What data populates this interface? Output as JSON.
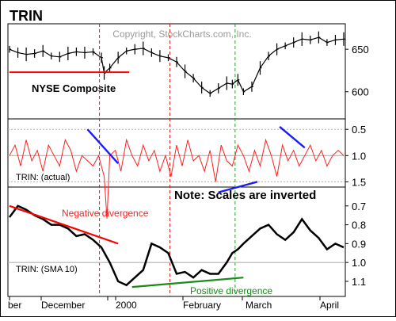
{
  "chart_data": {
    "type": "line",
    "title": "TRIN",
    "watermark": "Copyright, StockCharts.com, Inc.",
    "note": "Note: Scales are inverted",
    "x_tick_labels": [
      "ber",
      "December",
      "2000",
      "February",
      "March",
      "April"
    ],
    "panels": [
      {
        "name": "NYSE Composite",
        "series_color": "#000000",
        "y_scale": "linear",
        "y_ticks": [
          650,
          600
        ],
        "ylim": [
          568,
          680
        ],
        "x": [
          0,
          3,
          6,
          9,
          12,
          15,
          18,
          21,
          24,
          27,
          30,
          33,
          34,
          36,
          39,
          42,
          45,
          48,
          51,
          54,
          57,
          60,
          63,
          66,
          69,
          72,
          75,
          78,
          80,
          82,
          84,
          87,
          90,
          93,
          96,
          99,
          102,
          105,
          108,
          111,
          114,
          117,
          120
        ],
        "close": [
          650,
          646,
          644,
          645,
          648,
          642,
          641,
          645,
          647,
          646,
          647,
          640,
          622,
          628,
          640,
          648,
          650,
          651,
          646,
          642,
          640,
          635,
          624,
          616,
          605,
          598,
          604,
          610,
          609,
          614,
          600,
          606,
          628,
          642,
          650,
          654,
          658,
          662,
          661,
          664,
          658,
          661,
          662
        ]
      },
      {
        "name": "TRIN: (actual)",
        "series_color": "#ff2020",
        "y_scale": "inverted",
        "y_ticks": [
          0.5,
          1.0,
          1.5
        ],
        "ylim": [
          0.3,
          1.6
        ],
        "x": [
          0,
          2,
          4,
          6,
          8,
          10,
          12,
          14,
          16,
          18,
          20,
          22,
          24,
          26,
          28,
          30,
          32,
          34,
          35,
          36,
          38,
          40,
          42,
          44,
          46,
          48,
          50,
          52,
          54,
          56,
          58,
          60,
          62,
          64,
          66,
          68,
          70,
          72,
          74,
          76,
          78,
          80,
          82,
          84,
          86,
          88,
          90,
          92,
          94,
          96,
          98,
          100,
          102,
          104,
          106,
          108,
          110,
          112,
          114,
          116,
          118,
          120
        ],
        "values": [
          1.0,
          0.8,
          1.2,
          0.7,
          1.1,
          0.9,
          1.3,
          0.8,
          1.0,
          1.2,
          0.7,
          0.9,
          1.3,
          1.0,
          1.1,
          1.2,
          1.0,
          1.4,
          2.2,
          1.0,
          0.9,
          1.3,
          0.7,
          1.0,
          1.2,
          0.8,
          1.1,
          0.9,
          1.3,
          1.0,
          1.4,
          0.8,
          1.2,
          0.7,
          1.1,
          1.0,
          1.3,
          0.9,
          1.5,
          0.8,
          1.1,
          1.2,
          0.8,
          1.0,
          1.3,
          0.9,
          1.2,
          0.7,
          1.0,
          1.4,
          0.8,
          1.1,
          0.9,
          1.2,
          1.0,
          0.8,
          1.1,
          0.9,
          1.2,
          1.0,
          0.9,
          1.0
        ]
      },
      {
        "name": "TRIN: (SMA 10)",
        "series_color": "#000000",
        "y_scale": "inverted",
        "y_ticks": [
          0.7,
          0.8,
          0.9,
          1.0,
          1.1
        ],
        "ylim": [
          0.6,
          1.18
        ],
        "x": [
          0,
          3,
          6,
          9,
          12,
          15,
          18,
          21,
          24,
          27,
          30,
          33,
          36,
          39,
          42,
          45,
          48,
          51,
          54,
          57,
          60,
          63,
          66,
          69,
          72,
          75,
          78,
          80,
          82,
          84,
          87,
          90,
          93,
          96,
          99,
          102,
          105,
          108,
          111,
          114,
          117,
          120
        ],
        "values": [
          0.76,
          0.7,
          0.72,
          0.75,
          0.77,
          0.8,
          0.8,
          0.82,
          0.86,
          0.85,
          0.88,
          0.92,
          1.0,
          1.1,
          1.12,
          1.08,
          1.04,
          0.9,
          0.92,
          0.95,
          1.06,
          1.05,
          1.08,
          1.04,
          1.06,
          1.06,
          1.0,
          0.95,
          0.93,
          0.9,
          0.86,
          0.82,
          0.8,
          0.85,
          0.88,
          0.84,
          0.77,
          0.83,
          0.87,
          0.93,
          0.9,
          0.92
        ]
      }
    ],
    "annotations": [
      {
        "text": "Negative divergence",
        "color": "#ff2020"
      },
      {
        "text": "Positive divergence",
        "color": "#1a8a1a"
      }
    ],
    "reference_lines": [
      {
        "color": "#d81c1c",
        "style": "dashed"
      },
      {
        "color": "#d81c1c",
        "style": "dashed"
      },
      {
        "color": "#22a022",
        "style": "dashed"
      }
    ]
  }
}
